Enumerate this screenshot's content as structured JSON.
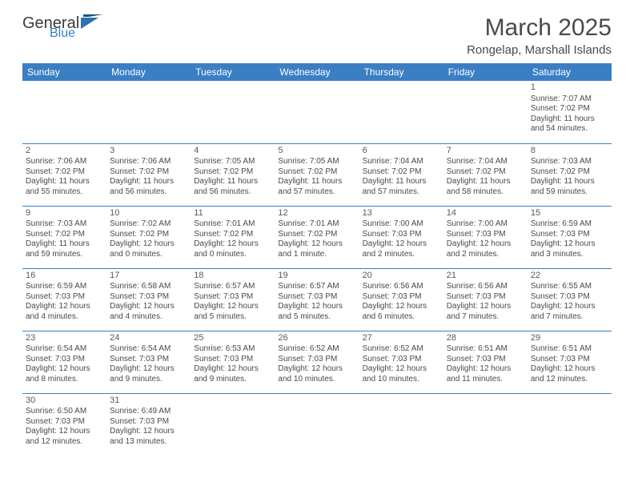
{
  "logo": {
    "general": "General",
    "blue": "Blue",
    "flag_color": "#2f6fb3"
  },
  "title": "March 2025",
  "location": "Rongelap, Marshall Islands",
  "colors": {
    "header_bg": "#3a7fc4",
    "header_fg": "#ffffff",
    "cell_border": "#3a7fc4"
  },
  "day_headers": [
    "Sunday",
    "Monday",
    "Tuesday",
    "Wednesday",
    "Thursday",
    "Friday",
    "Saturday"
  ],
  "weeks": [
    [
      null,
      null,
      null,
      null,
      null,
      null,
      {
        "n": "1",
        "sr": "Sunrise: 7:07 AM",
        "ss": "Sunset: 7:02 PM",
        "dl1": "Daylight: 11 hours",
        "dl2": "and 54 minutes."
      }
    ],
    [
      {
        "n": "2",
        "sr": "Sunrise: 7:06 AM",
        "ss": "Sunset: 7:02 PM",
        "dl1": "Daylight: 11 hours",
        "dl2": "and 55 minutes."
      },
      {
        "n": "3",
        "sr": "Sunrise: 7:06 AM",
        "ss": "Sunset: 7:02 PM",
        "dl1": "Daylight: 11 hours",
        "dl2": "and 56 minutes."
      },
      {
        "n": "4",
        "sr": "Sunrise: 7:05 AM",
        "ss": "Sunset: 7:02 PM",
        "dl1": "Daylight: 11 hours",
        "dl2": "and 56 minutes."
      },
      {
        "n": "5",
        "sr": "Sunrise: 7:05 AM",
        "ss": "Sunset: 7:02 PM",
        "dl1": "Daylight: 11 hours",
        "dl2": "and 57 minutes."
      },
      {
        "n": "6",
        "sr": "Sunrise: 7:04 AM",
        "ss": "Sunset: 7:02 PM",
        "dl1": "Daylight: 11 hours",
        "dl2": "and 57 minutes."
      },
      {
        "n": "7",
        "sr": "Sunrise: 7:04 AM",
        "ss": "Sunset: 7:02 PM",
        "dl1": "Daylight: 11 hours",
        "dl2": "and 58 minutes."
      },
      {
        "n": "8",
        "sr": "Sunrise: 7:03 AM",
        "ss": "Sunset: 7:02 PM",
        "dl1": "Daylight: 11 hours",
        "dl2": "and 59 minutes."
      }
    ],
    [
      {
        "n": "9",
        "sr": "Sunrise: 7:03 AM",
        "ss": "Sunset: 7:02 PM",
        "dl1": "Daylight: 11 hours",
        "dl2": "and 59 minutes."
      },
      {
        "n": "10",
        "sr": "Sunrise: 7:02 AM",
        "ss": "Sunset: 7:02 PM",
        "dl1": "Daylight: 12 hours",
        "dl2": "and 0 minutes."
      },
      {
        "n": "11",
        "sr": "Sunrise: 7:01 AM",
        "ss": "Sunset: 7:02 PM",
        "dl1": "Daylight: 12 hours",
        "dl2": "and 0 minutes."
      },
      {
        "n": "12",
        "sr": "Sunrise: 7:01 AM",
        "ss": "Sunset: 7:02 PM",
        "dl1": "Daylight: 12 hours",
        "dl2": "and 1 minute."
      },
      {
        "n": "13",
        "sr": "Sunrise: 7:00 AM",
        "ss": "Sunset: 7:03 PM",
        "dl1": "Daylight: 12 hours",
        "dl2": "and 2 minutes."
      },
      {
        "n": "14",
        "sr": "Sunrise: 7:00 AM",
        "ss": "Sunset: 7:03 PM",
        "dl1": "Daylight: 12 hours",
        "dl2": "and 2 minutes."
      },
      {
        "n": "15",
        "sr": "Sunrise: 6:59 AM",
        "ss": "Sunset: 7:03 PM",
        "dl1": "Daylight: 12 hours",
        "dl2": "and 3 minutes."
      }
    ],
    [
      {
        "n": "16",
        "sr": "Sunrise: 6:59 AM",
        "ss": "Sunset: 7:03 PM",
        "dl1": "Daylight: 12 hours",
        "dl2": "and 4 minutes."
      },
      {
        "n": "17",
        "sr": "Sunrise: 6:58 AM",
        "ss": "Sunset: 7:03 PM",
        "dl1": "Daylight: 12 hours",
        "dl2": "and 4 minutes."
      },
      {
        "n": "18",
        "sr": "Sunrise: 6:57 AM",
        "ss": "Sunset: 7:03 PM",
        "dl1": "Daylight: 12 hours",
        "dl2": "and 5 minutes."
      },
      {
        "n": "19",
        "sr": "Sunrise: 6:57 AM",
        "ss": "Sunset: 7:03 PM",
        "dl1": "Daylight: 12 hours",
        "dl2": "and 5 minutes."
      },
      {
        "n": "20",
        "sr": "Sunrise: 6:56 AM",
        "ss": "Sunset: 7:03 PM",
        "dl1": "Daylight: 12 hours",
        "dl2": "and 6 minutes."
      },
      {
        "n": "21",
        "sr": "Sunrise: 6:56 AM",
        "ss": "Sunset: 7:03 PM",
        "dl1": "Daylight: 12 hours",
        "dl2": "and 7 minutes."
      },
      {
        "n": "22",
        "sr": "Sunrise: 6:55 AM",
        "ss": "Sunset: 7:03 PM",
        "dl1": "Daylight: 12 hours",
        "dl2": "and 7 minutes."
      }
    ],
    [
      {
        "n": "23",
        "sr": "Sunrise: 6:54 AM",
        "ss": "Sunset: 7:03 PM",
        "dl1": "Daylight: 12 hours",
        "dl2": "and 8 minutes."
      },
      {
        "n": "24",
        "sr": "Sunrise: 6:54 AM",
        "ss": "Sunset: 7:03 PM",
        "dl1": "Daylight: 12 hours",
        "dl2": "and 9 minutes."
      },
      {
        "n": "25",
        "sr": "Sunrise: 6:53 AM",
        "ss": "Sunset: 7:03 PM",
        "dl1": "Daylight: 12 hours",
        "dl2": "and 9 minutes."
      },
      {
        "n": "26",
        "sr": "Sunrise: 6:52 AM",
        "ss": "Sunset: 7:03 PM",
        "dl1": "Daylight: 12 hours",
        "dl2": "and 10 minutes."
      },
      {
        "n": "27",
        "sr": "Sunrise: 6:52 AM",
        "ss": "Sunset: 7:03 PM",
        "dl1": "Daylight: 12 hours",
        "dl2": "and 10 minutes."
      },
      {
        "n": "28",
        "sr": "Sunrise: 6:51 AM",
        "ss": "Sunset: 7:03 PM",
        "dl1": "Daylight: 12 hours",
        "dl2": "and 11 minutes."
      },
      {
        "n": "29",
        "sr": "Sunrise: 6:51 AM",
        "ss": "Sunset: 7:03 PM",
        "dl1": "Daylight: 12 hours",
        "dl2": "and 12 minutes."
      }
    ],
    [
      {
        "n": "30",
        "sr": "Sunrise: 6:50 AM",
        "ss": "Sunset: 7:03 PM",
        "dl1": "Daylight: 12 hours",
        "dl2": "and 12 minutes."
      },
      {
        "n": "31",
        "sr": "Sunrise: 6:49 AM",
        "ss": "Sunset: 7:03 PM",
        "dl1": "Daylight: 12 hours",
        "dl2": "and 13 minutes."
      },
      null,
      null,
      null,
      null,
      null
    ]
  ]
}
